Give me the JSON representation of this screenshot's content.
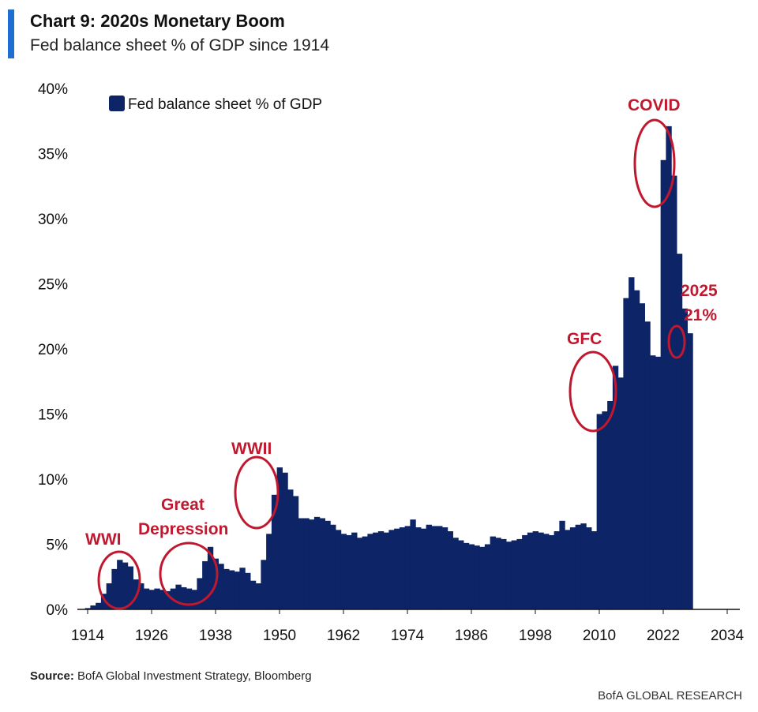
{
  "header": {
    "title": "Chart 9: 2020s Monetary Boom",
    "subtitle": "Fed balance sheet % of GDP since 1914"
  },
  "footer": {
    "source_label": "Source:",
    "source_text": "BofA Global Investment Strategy, Bloomberg",
    "brand": "BofA GLOBAL RESEARCH"
  },
  "colors": {
    "bar": "#0d2466",
    "annotation": "#c0182f",
    "accent": "#1f6fd1"
  },
  "chart_data": {
    "type": "bar",
    "title": "Chart 9: 2020s Monetary Boom",
    "subtitle": "Fed balance sheet % of GDP since 1914",
    "xlabel": "",
    "ylabel": "",
    "xlim": [
      1914,
      2036
    ],
    "ylim": [
      0,
      40
    ],
    "x_ticks": [
      1914,
      1926,
      1938,
      1950,
      1962,
      1974,
      1986,
      1998,
      2010,
      2022,
      2034
    ],
    "y_ticks": [
      0,
      5,
      10,
      15,
      20,
      25,
      30,
      35,
      40
    ],
    "y_tick_labels": [
      "0%",
      "5%",
      "10%",
      "15%",
      "20%",
      "25%",
      "30%",
      "35%",
      "40%"
    ],
    "grid": false,
    "legend": {
      "position": "top-left",
      "entries": [
        "Fed balance sheet % of GDP"
      ]
    },
    "series": [
      {
        "name": "Fed balance sheet % of GDP",
        "points": [
          [
            1914,
            0.1
          ],
          [
            1915,
            0.3
          ],
          [
            1916,
            0.5
          ],
          [
            1917,
            1.2
          ],
          [
            1918,
            2.0
          ],
          [
            1919,
            3.1
          ],
          [
            1920,
            3.8
          ],
          [
            1921,
            3.6
          ],
          [
            1922,
            3.3
          ],
          [
            1923,
            2.3
          ],
          [
            1924,
            2.0
          ],
          [
            1925,
            1.6
          ],
          [
            1926,
            1.5
          ],
          [
            1927,
            1.6
          ],
          [
            1928,
            1.5
          ],
          [
            1929,
            1.4
          ],
          [
            1930,
            1.6
          ],
          [
            1931,
            1.9
          ],
          [
            1932,
            1.7
          ],
          [
            1933,
            1.6
          ],
          [
            1934,
            1.5
          ],
          [
            1935,
            2.4
          ],
          [
            1936,
            3.7
          ],
          [
            1937,
            4.8
          ],
          [
            1938,
            3.9
          ],
          [
            1939,
            3.5
          ],
          [
            1940,
            3.1
          ],
          [
            1941,
            3.0
          ],
          [
            1942,
            2.9
          ],
          [
            1943,
            3.2
          ],
          [
            1944,
            2.8
          ],
          [
            1945,
            2.2
          ],
          [
            1946,
            2.0
          ],
          [
            1947,
            3.8
          ],
          [
            1948,
            5.8
          ],
          [
            1949,
            8.8
          ],
          [
            1950,
            10.9
          ],
          [
            1951,
            10.5
          ],
          [
            1952,
            9.2
          ],
          [
            1953,
            8.7
          ],
          [
            1954,
            7.0
          ],
          [
            1955,
            7.0
          ],
          [
            1956,
            6.9
          ],
          [
            1957,
            7.1
          ],
          [
            1958,
            7.0
          ],
          [
            1959,
            6.8
          ],
          [
            1960,
            6.5
          ],
          [
            1961,
            6.1
          ],
          [
            1962,
            5.8
          ],
          [
            1963,
            5.7
          ],
          [
            1964,
            5.9
          ],
          [
            1965,
            5.5
          ],
          [
            1966,
            5.6
          ],
          [
            1967,
            5.8
          ],
          [
            1968,
            5.9
          ],
          [
            1969,
            6.0
          ],
          [
            1970,
            5.9
          ],
          [
            1971,
            6.1
          ],
          [
            1972,
            6.2
          ],
          [
            1973,
            6.3
          ],
          [
            1974,
            6.4
          ],
          [
            1975,
            6.9
          ],
          [
            1976,
            6.3
          ],
          [
            1977,
            6.2
          ],
          [
            1978,
            6.5
          ],
          [
            1979,
            6.4
          ],
          [
            1980,
            6.4
          ],
          [
            1981,
            6.3
          ],
          [
            1982,
            6.0
          ],
          [
            1983,
            5.5
          ],
          [
            1984,
            5.3
          ],
          [
            1985,
            5.1
          ],
          [
            1986,
            5.0
          ],
          [
            1987,
            4.9
          ],
          [
            1988,
            4.8
          ],
          [
            1989,
            5.0
          ],
          [
            1990,
            5.6
          ],
          [
            1991,
            5.5
          ],
          [
            1992,
            5.4
          ],
          [
            1993,
            5.2
          ],
          [
            1994,
            5.3
          ],
          [
            1995,
            5.4
          ],
          [
            1996,
            5.7
          ],
          [
            1997,
            5.9
          ],
          [
            1998,
            6.0
          ],
          [
            1999,
            5.9
          ],
          [
            2000,
            5.8
          ],
          [
            2001,
            5.7
          ],
          [
            2002,
            6.0
          ],
          [
            2003,
            6.8
          ],
          [
            2004,
            6.1
          ],
          [
            2005,
            6.3
          ],
          [
            2006,
            6.5
          ],
          [
            2007,
            6.6
          ],
          [
            2008,
            6.3
          ],
          [
            2009,
            6.0
          ],
          [
            2010,
            15.0
          ],
          [
            2011,
            15.2
          ],
          [
            2012,
            16.0
          ],
          [
            2013,
            18.7
          ],
          [
            2014,
            17.8
          ],
          [
            2015,
            23.9
          ],
          [
            2016,
            25.5
          ],
          [
            2017,
            24.5
          ],
          [
            2018,
            23.5
          ],
          [
            2019,
            22.1
          ],
          [
            2020,
            19.5
          ],
          [
            2021,
            19.4
          ],
          [
            2022,
            34.5
          ],
          [
            2023,
            37.1
          ],
          [
            2024,
            33.3
          ],
          [
            2025,
            27.3
          ],
          [
            2026,
            23.1
          ],
          [
            2027,
            21.2
          ]
        ]
      }
    ],
    "annotations": [
      {
        "label": "WWI"
      },
      {
        "label": "Great"
      },
      {
        "label": "Depression"
      },
      {
        "label": "WWII"
      },
      {
        "label": "GFC"
      },
      {
        "label": "COVID"
      },
      {
        "label": "2025"
      },
      {
        "label": "21%"
      }
    ]
  }
}
